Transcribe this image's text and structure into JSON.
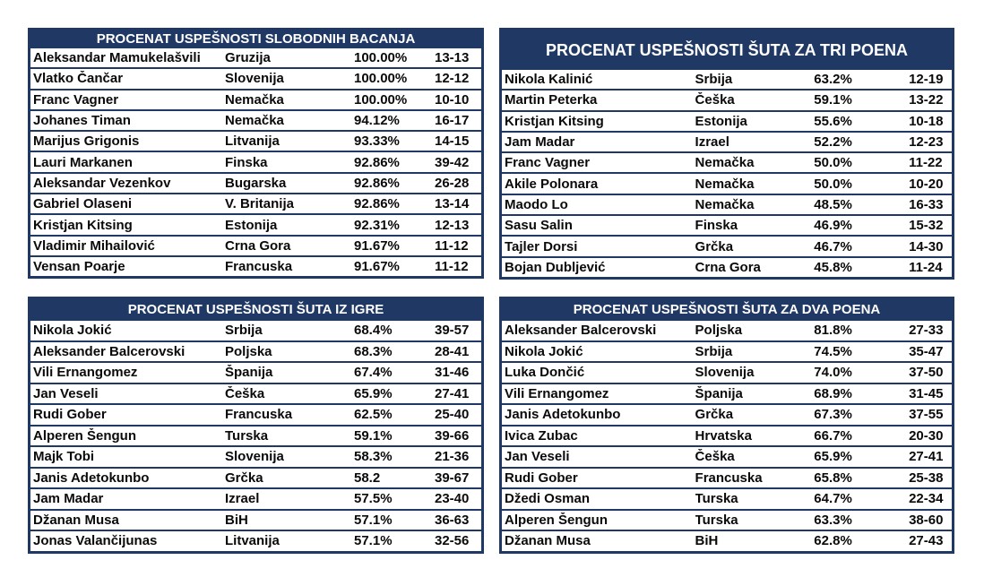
{
  "free_throws": {
    "title": "PROCENAT USPEŠNOSTI SLOBODNIH BACANJA",
    "rows": [
      {
        "name": "Aleksandar Mamukelašvili",
        "country": "Gruzija",
        "pct": "100.00%",
        "made": "13-13"
      },
      {
        "name": "Vlatko Čančar",
        "country": "Slovenija",
        "pct": "100.00%",
        "made": "12-12"
      },
      {
        "name": "Franc Vagner",
        "country": "Nemačka",
        "pct": "100.00%",
        "made": "10-10"
      },
      {
        "name": "Johanes Timan",
        "country": "Nemačka",
        "pct": "94.12%",
        "made": "16-17"
      },
      {
        "name": "Marijus Grigonis",
        "country": "Litvanija",
        "pct": "93.33%",
        "made": "14-15"
      },
      {
        "name": "Lauri Markanen",
        "country": "Finska",
        "pct": "92.86%",
        "made": "39-42"
      },
      {
        "name": "Aleksandar Vezenkov",
        "country": "Bugarska",
        "pct": "92.86%",
        "made": "26-28"
      },
      {
        "name": "Gabriel Olaseni",
        "country": "V. Britanija",
        "pct": "92.86%",
        "made": "13-14"
      },
      {
        "name": "Kristjan Kitsing",
        "country": "Estonija",
        "pct": "92.31%",
        "made": "12-13"
      },
      {
        "name": "Vladimir Mihailović",
        "country": "Crna Gora",
        "pct": "91.67%",
        "made": "11-12"
      },
      {
        "name": "Vensan Poarje",
        "country": "Francuska",
        "pct": "91.67%",
        "made": "11-12"
      }
    ]
  },
  "three_pointers": {
    "title": "PROCENAT USPEŠNOSTI ŠUTA ZA TRI POENA",
    "rows": [
      {
        "name": "Nikola Kalinić",
        "country": "Srbija",
        "pct": "63.2%",
        "made": "12-19"
      },
      {
        "name": "Martin Peterka",
        "country": "Češka",
        "pct": "59.1%",
        "made": "13-22"
      },
      {
        "name": "Kristjan Kitsing",
        "country": "Estonija",
        "pct": "55.6%",
        "made": "10-18"
      },
      {
        "name": "Jam Madar",
        "country": "Izrael",
        "pct": "52.2%",
        "made": "12-23"
      },
      {
        "name": "Franc Vagner",
        "country": "Nemačka",
        "pct": "50.0%",
        "made": "11-22"
      },
      {
        "name": "Akile Polonara",
        "country": "Nemačka",
        "pct": "50.0%",
        "made": "10-20"
      },
      {
        "name": "Maodo Lo",
        "country": "Nemačka",
        "pct": "48.5%",
        "made": "16-33"
      },
      {
        "name": "Sasu Salin",
        "country": "Finska",
        "pct": "46.9%",
        "made": "15-32"
      },
      {
        "name": "Tajler Dorsi",
        "country": "Grčka",
        "pct": "46.7%",
        "made": "14-30"
      },
      {
        "name": "Bojan Dubljević",
        "country": "Crna Gora",
        "pct": "45.8%",
        "made": "11-24"
      }
    ]
  },
  "field_goals": {
    "title": "PROCENAT USPEŠNOSTI ŠUTA IZ IGRE",
    "rows": [
      {
        "name": "Nikola Jokić",
        "country": "Srbija",
        "pct": "68.4%",
        "made": "39-57"
      },
      {
        "name": "Aleksander Balcerovski",
        "country": "Poljska",
        "pct": "68.3%",
        "made": "28-41"
      },
      {
        "name": "Vili Ernangomez",
        "country": "Španija",
        "pct": "67.4%",
        "made": "31-46"
      },
      {
        "name": "Jan Veseli",
        "country": "Češka",
        "pct": "65.9%",
        "made": "27-41"
      },
      {
        "name": "Rudi Gober",
        "country": "Francuska",
        "pct": "62.5%",
        "made": "25-40"
      },
      {
        "name": "Alperen Šengun",
        "country": "Turska",
        "pct": "59.1%",
        "made": "39-66"
      },
      {
        "name": "Majk Tobi",
        "country": "Slovenija",
        "pct": "58.3%",
        "made": "21-36"
      },
      {
        "name": "Janis Adetokunbo",
        "country": "Grčka",
        "pct": "58.2",
        "made": "39-67"
      },
      {
        "name": "Jam Madar",
        "country": "Izrael",
        "pct": "57.5%",
        "made": "23-40"
      },
      {
        "name": "Džanan Musa",
        "country": "BiH",
        "pct": "57.1%",
        "made": "36-63"
      },
      {
        "name": "Jonas Valančijunas",
        "country": "Litvanija",
        "pct": "57.1%",
        "made": "32-56"
      }
    ]
  },
  "two_pointers": {
    "title": "PROCENAT USPEŠNOSTI ŠUTA ZA DVA POENA",
    "rows": [
      {
        "name": "Aleksander Balcerovski",
        "country": "Poljska",
        "pct": "81.8%",
        "made": "27-33"
      },
      {
        "name": "Nikola Jokić",
        "country": "Srbija",
        "pct": "74.5%",
        "made": "35-47"
      },
      {
        "name": "Luka Dončić",
        "country": "Slovenija",
        "pct": "74.0%",
        "made": "37-50"
      },
      {
        "name": "Vili Ernangomez",
        "country": "Španija",
        "pct": "68.9%",
        "made": "31-45"
      },
      {
        "name": "Janis Adetokunbo",
        "country": "Grčka",
        "pct": "67.3%",
        "made": "37-55"
      },
      {
        "name": "Ivica Zubac",
        "country": "Hrvatska",
        "pct": "66.7%",
        "made": "20-30"
      },
      {
        "name": "Jan Veseli",
        "country": "Češka",
        "pct": "65.9%",
        "made": "27-41"
      },
      {
        "name": "Rudi Gober",
        "country": "Francuska",
        "pct": "65.8%",
        "made": "25-38"
      },
      {
        "name": "Džedi Osman",
        "country": "Turska",
        "pct": "64.7%",
        "made": "22-34"
      },
      {
        "name": "Alperen Šengun",
        "country": "Turska",
        "pct": "63.3%",
        "made": "38-60"
      },
      {
        "name": "Džanan Musa",
        "country": "BiH",
        "pct": "62.8%",
        "made": "27-43"
      }
    ]
  },
  "colors": {
    "header_bg": "#1f3864",
    "header_text": "#ffffff",
    "cell_bg": "#ffffff",
    "cell_text": "#0a0a0a"
  }
}
